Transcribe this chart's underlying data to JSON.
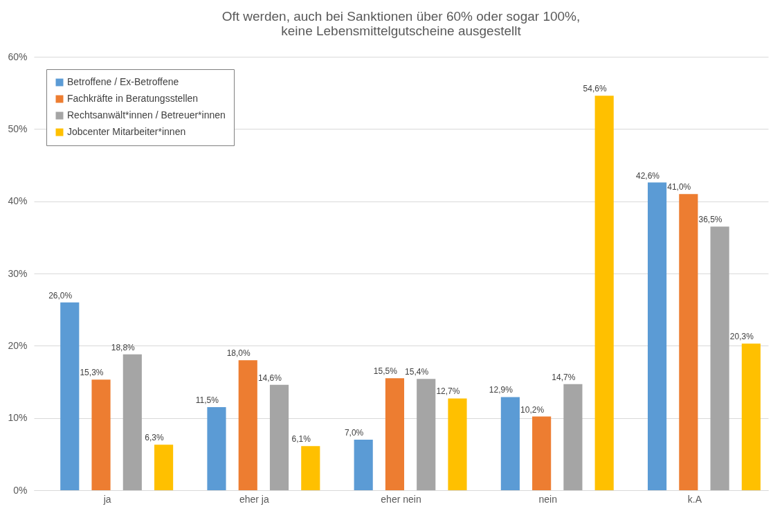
{
  "chart_data": {
    "type": "bar",
    "title": "Oft werden, auch bei Sanktionen über 60% oder sogar 100%,\nkeine Lebensmittelgutscheine ausgestellt",
    "categories": [
      "ja",
      "eher ja",
      "eher nein",
      "nein",
      "k.A"
    ],
    "series": [
      {
        "name": "Betroffene / Ex-Betroffene",
        "color": "#5b9bd5",
        "values": [
          26.0,
          11.5,
          7.0,
          12.9,
          42.6
        ],
        "value_labels": [
          "26,0%",
          "11,5%",
          "7,0%",
          "12,9%",
          "42,6%"
        ]
      },
      {
        "name": "Fachkräfte in Beratungsstellen",
        "color": "#ed7d31",
        "values": [
          15.3,
          18.0,
          15.5,
          10.2,
          41.0
        ],
        "value_labels": [
          "15,3%",
          "18,0%",
          "15,5%",
          "10,2%",
          "41,0%"
        ]
      },
      {
        "name": "Rechtsanwält*innen / Betreuer*innen",
        "color": "#a5a5a5",
        "values": [
          18.8,
          14.6,
          15.4,
          14.7,
          36.5
        ],
        "value_labels": [
          "18,8%",
          "14,6%",
          "15,4%",
          "14,7%",
          "36,5%"
        ]
      },
      {
        "name": "Jobcenter Mitarbeiter*innen",
        "color": "#ffc000",
        "values": [
          6.3,
          6.1,
          12.7,
          54.6,
          20.3
        ],
        "value_labels": [
          "6,3%",
          "6,1%",
          "12,7%",
          "54,6%",
          "20,3%"
        ]
      }
    ],
    "ylim": [
      0,
      60
    ],
    "yticks": [
      {
        "value": 0,
        "label": "0%"
      },
      {
        "value": 10,
        "label": "10%"
      },
      {
        "value": 20,
        "label": "20%"
      },
      {
        "value": 30,
        "label": "30%"
      },
      {
        "value": 40,
        "label": "40%"
      },
      {
        "value": 50,
        "label": "50%"
      },
      {
        "value": 60,
        "label": "60%"
      }
    ],
    "grid": "y",
    "legend": "top left"
  }
}
